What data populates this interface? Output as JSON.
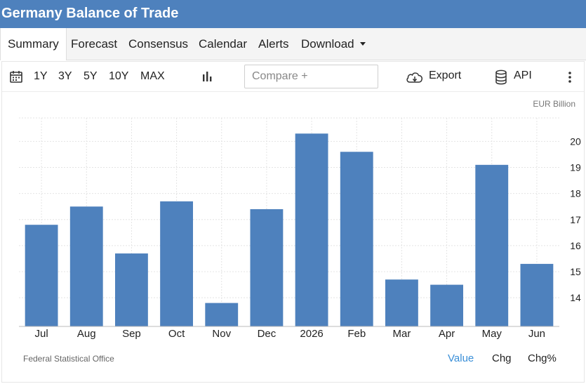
{
  "header": {
    "title": "Germany Balance of Trade"
  },
  "tabs": [
    {
      "label": "Summary"
    },
    {
      "label": "Forecast"
    },
    {
      "label": "Consensus"
    },
    {
      "label": "Calendar"
    },
    {
      "label": "Alerts"
    },
    {
      "label": "Download"
    }
  ],
  "toolbar": {
    "ranges": [
      "1Y",
      "3Y",
      "5Y",
      "10Y",
      "MAX"
    ],
    "compare_placeholder": "Compare +",
    "export_label": "Export",
    "api_label": "API",
    "icons": [
      "calendar-icon",
      "bar-chart-icon",
      "cloud-download-icon",
      "database-icon",
      "more-vertical-icon"
    ]
  },
  "chart": {
    "units": "EUR Billion",
    "source": "Federal Statistical Office"
  },
  "modes": [
    {
      "label": "Value",
      "active": true
    },
    {
      "label": "Chg"
    },
    {
      "label": "Chg%"
    }
  ],
  "colors": {
    "header": "#4e81bd",
    "bar": "#4e81bd",
    "active_mode": "#3a8fd8"
  },
  "chart_data": {
    "type": "bar",
    "title": "",
    "xlabel": "",
    "ylabel": "",
    "categories": [
      "Jul",
      "Aug",
      "Sep",
      "Oct",
      "Nov",
      "Dec",
      "2026",
      "Feb",
      "Mar",
      "Apr",
      "May",
      "Jun"
    ],
    "values": [
      16.8,
      17.5,
      15.7,
      17.7,
      13.8,
      17.4,
      20.3,
      19.6,
      14.7,
      14.5,
      19.1,
      15.3
    ],
    "yticks": [
      14,
      15,
      16,
      17,
      18,
      19,
      20
    ],
    "ylim": [
      12.9,
      20.9
    ],
    "grid": true,
    "y_axis_side": "right"
  }
}
